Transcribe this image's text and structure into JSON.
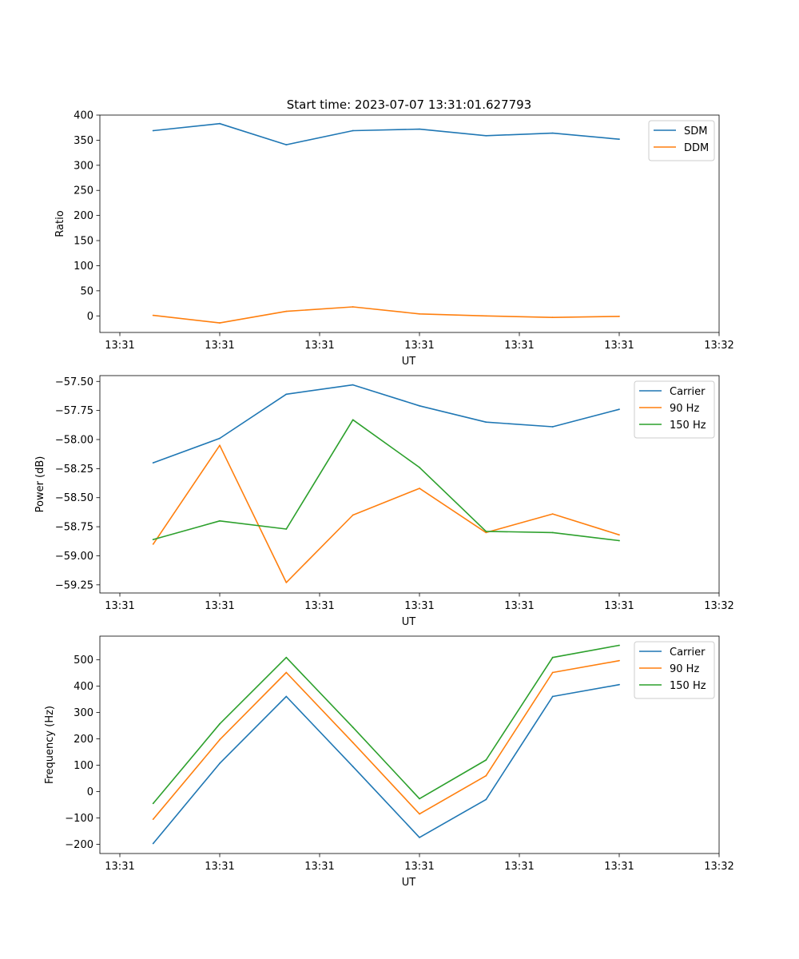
{
  "figure": {
    "title": "Start time: 2023-07-07 13:31:01.627793"
  },
  "colors": {
    "c0": "#1f77b4",
    "c1": "#ff7f0e",
    "c2": "#2ca02c"
  },
  "chart_data": [
    {
      "type": "line",
      "title": "Start time: 2023-07-07 13:31:01.627793",
      "xlabel": "UT",
      "ylabel": "Ratio",
      "x": [
        1,
        2,
        3,
        4,
        5,
        6,
        7,
        8
      ],
      "xlim": [
        0.2,
        9.5
      ],
      "xticks": [
        0.5,
        2,
        3.5,
        5,
        6.5,
        8,
        9.5
      ],
      "xtick_labels": [
        "13:31",
        "13:31",
        "13:31",
        "13:31",
        "13:31",
        "13:31",
        "13:32"
      ],
      "ylim": [
        -33,
        400
      ],
      "yticks": [
        0,
        50,
        100,
        150,
        200,
        250,
        300,
        350,
        400
      ],
      "ytick_labels": [
        "0",
        "50",
        "100",
        "150",
        "200",
        "250",
        "300",
        "350",
        "400"
      ],
      "legend": "top-right",
      "series": [
        {
          "name": "SDM",
          "color": "#1f77b4",
          "values": [
            369,
            383,
            341,
            369,
            372,
            359,
            364,
            352
          ]
        },
        {
          "name": "DDM",
          "color": "#ff7f0e",
          "values": [
            1,
            -14,
            9,
            18,
            4,
            0,
            -3,
            -1
          ]
        }
      ]
    },
    {
      "type": "line",
      "title": "",
      "xlabel": "UT",
      "ylabel": "Power (dB)",
      "x": [
        1,
        2,
        3,
        4,
        5,
        6,
        7,
        8
      ],
      "xlim": [
        0.2,
        9.5
      ],
      "xticks": [
        0.5,
        2,
        3.5,
        5,
        6.5,
        8,
        9.5
      ],
      "xtick_labels": [
        "13:31",
        "13:31",
        "13:31",
        "13:31",
        "13:31",
        "13:31",
        "13:32"
      ],
      "ylim": [
        -59.32,
        -57.45
      ],
      "yticks": [
        -59.25,
        -59.0,
        -58.75,
        -58.5,
        -58.25,
        -58.0,
        -57.75,
        -57.5
      ],
      "ytick_labels": [
        "−59.25",
        "−59.00",
        "−58.75",
        "−58.50",
        "−58.25",
        "−58.00",
        "−57.75",
        "−57.50"
      ],
      "legend": "top-right",
      "series": [
        {
          "name": "Carrier",
          "color": "#1f77b4",
          "values": [
            -58.2,
            -57.99,
            -57.61,
            -57.53,
            -57.71,
            -57.85,
            -57.89,
            -57.74
          ]
        },
        {
          "name": "90 Hz",
          "color": "#ff7f0e",
          "values": [
            -58.9,
            -58.05,
            -59.23,
            -58.65,
            -58.42,
            -58.8,
            -58.64,
            -58.82
          ]
        },
        {
          "name": "150 Hz",
          "color": "#2ca02c",
          "values": [
            -58.86,
            -58.7,
            -58.77,
            -57.83,
            -58.24,
            -58.79,
            -58.8,
            -58.87
          ]
        }
      ]
    },
    {
      "type": "line",
      "title": "",
      "xlabel": "UT",
      "ylabel": "Frequency (Hz)",
      "x": [
        1,
        2,
        3,
        4,
        5,
        6,
        7,
        8
      ],
      "xlim": [
        0.2,
        9.5
      ],
      "xticks": [
        0.5,
        2,
        3.5,
        5,
        6.5,
        8,
        9.5
      ],
      "xtick_labels": [
        "13:31",
        "13:31",
        "13:31",
        "13:31",
        "13:31",
        "13:31",
        "13:32"
      ],
      "ylim": [
        -235,
        590
      ],
      "yticks": [
        -200,
        -100,
        0,
        100,
        200,
        300,
        400,
        500
      ],
      "ytick_labels": [
        "−200",
        "−100",
        "0",
        "100",
        "200",
        "300",
        "400",
        "500"
      ],
      "legend": "top-right",
      "series": [
        {
          "name": "Carrier",
          "color": "#1f77b4",
          "values": [
            -197,
            107,
            361,
            95,
            -174,
            -30,
            361,
            406
          ]
        },
        {
          "name": "90 Hz",
          "color": "#ff7f0e",
          "values": [
            -105,
            197,
            452,
            186,
            -85,
            60,
            452,
            497
          ]
        },
        {
          "name": "150 Hz",
          "color": "#2ca02c",
          "values": [
            -45,
            257,
            509,
            244,
            -27,
            120,
            509,
            555
          ]
        }
      ]
    }
  ]
}
